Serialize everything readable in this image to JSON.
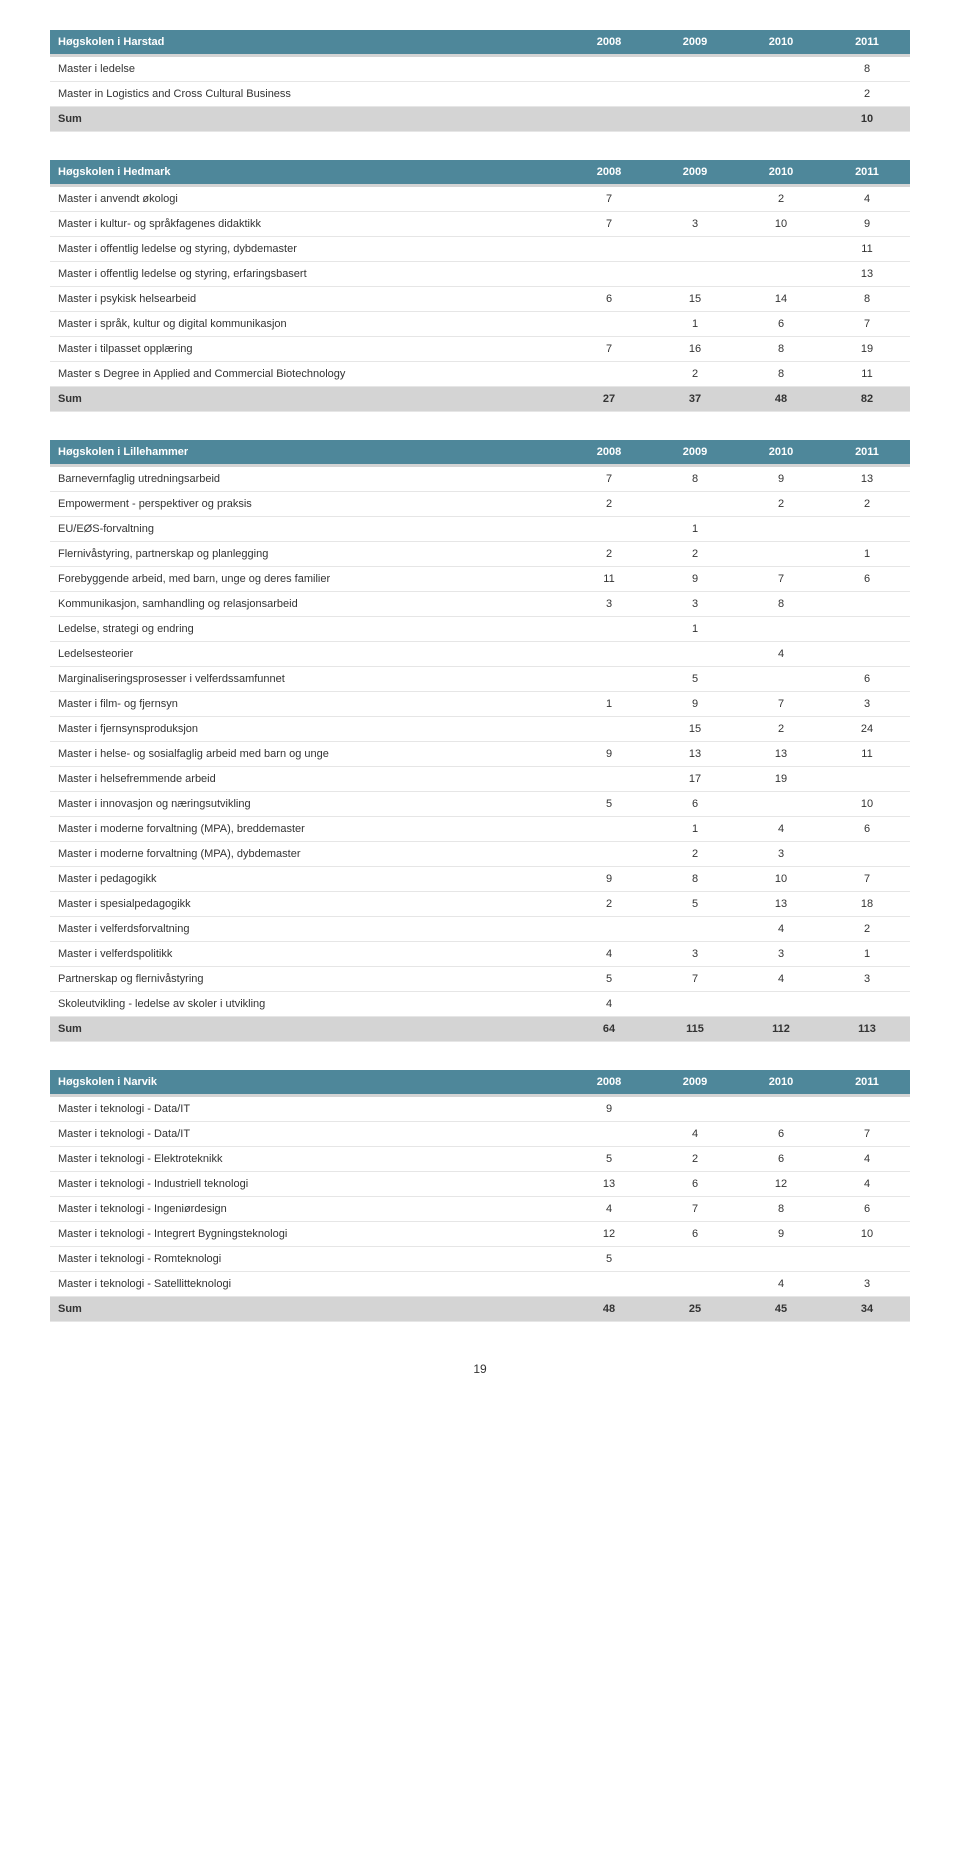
{
  "years": [
    "2008",
    "2009",
    "2010",
    "2011"
  ],
  "page_number": "19",
  "tables": [
    {
      "title": "Høgskolen i Harstad",
      "rows": [
        {
          "label": "Master i ledelse",
          "v": [
            "",
            "",
            "",
            "8"
          ]
        },
        {
          "label": "Master in Logistics and Cross Cultural Business",
          "v": [
            "",
            "",
            "",
            "2"
          ]
        }
      ],
      "sum": {
        "label": "Sum",
        "v": [
          "",
          "",
          "",
          "10"
        ]
      }
    },
    {
      "title": "Høgskolen i Hedmark",
      "rows": [
        {
          "label": "Master i anvendt økologi",
          "v": [
            "7",
            "",
            "2",
            "4"
          ]
        },
        {
          "label": "Master i kultur- og språkfagenes didaktikk",
          "v": [
            "7",
            "3",
            "10",
            "9"
          ]
        },
        {
          "label": "Master i offentlig ledelse og styring, dybdemaster",
          "v": [
            "",
            "",
            "",
            "11"
          ]
        },
        {
          "label": "Master i offentlig ledelse og styring, erfaringsbasert",
          "v": [
            "",
            "",
            "",
            "13"
          ]
        },
        {
          "label": "Master i psykisk helsearbeid",
          "v": [
            "6",
            "15",
            "14",
            "8"
          ]
        },
        {
          "label": "Master i språk, kultur og digital kommunikasjon",
          "v": [
            "",
            "1",
            "6",
            "7"
          ]
        },
        {
          "label": "Master i tilpasset opplæring",
          "v": [
            "7",
            "16",
            "8",
            "19"
          ]
        },
        {
          "label": "Master s Degree in Applied and Commercial Biotechnology",
          "v": [
            "",
            "2",
            "8",
            "11"
          ]
        }
      ],
      "sum": {
        "label": "Sum",
        "v": [
          "27",
          "37",
          "48",
          "82"
        ]
      }
    },
    {
      "title": "Høgskolen i Lillehammer",
      "rows": [
        {
          "label": "Barnevernfaglig utredningsarbeid",
          "v": [
            "7",
            "8",
            "9",
            "13"
          ]
        },
        {
          "label": "Empowerment - perspektiver og praksis",
          "v": [
            "2",
            "",
            "2",
            "2"
          ]
        },
        {
          "label": "EU/EØS-forvaltning",
          "v": [
            "",
            "1",
            "",
            ""
          ]
        },
        {
          "label": "Flernivåstyring, partnerskap og planlegging",
          "v": [
            "2",
            "2",
            "",
            "1"
          ]
        },
        {
          "label": "Forebyggende arbeid, med barn, unge og deres familier",
          "v": [
            "11",
            "9",
            "7",
            "6"
          ]
        },
        {
          "label": "Kommunikasjon, samhandling og relasjonsarbeid",
          "v": [
            "3",
            "3",
            "8",
            ""
          ]
        },
        {
          "label": "Ledelse, strategi og endring",
          "v": [
            "",
            "1",
            "",
            ""
          ]
        },
        {
          "label": "Ledelsesteorier",
          "v": [
            "",
            "",
            "4",
            ""
          ]
        },
        {
          "label": "Marginaliseringsprosesser i velferdssamfunnet",
          "v": [
            "",
            "5",
            "",
            "6"
          ]
        },
        {
          "label": "Master i film- og fjernsyn",
          "v": [
            "1",
            "9",
            "7",
            "3"
          ]
        },
        {
          "label": "Master i fjernsynsproduksjon",
          "v": [
            "",
            "15",
            "2",
            "24"
          ]
        },
        {
          "label": "Master i helse- og sosialfaglig arbeid med barn og unge",
          "v": [
            "9",
            "13",
            "13",
            "11"
          ]
        },
        {
          "label": "Master i helsefremmende arbeid",
          "v": [
            "",
            "17",
            "19",
            ""
          ]
        },
        {
          "label": "Master i innovasjon og næringsutvikling",
          "v": [
            "5",
            "6",
            "",
            "10"
          ]
        },
        {
          "label": "Master i moderne forvaltning (MPA), breddemaster",
          "v": [
            "",
            "1",
            "4",
            "6"
          ]
        },
        {
          "label": "Master i moderne forvaltning (MPA), dybdemaster",
          "v": [
            "",
            "2",
            "3",
            ""
          ]
        },
        {
          "label": "Master i pedagogikk",
          "v": [
            "9",
            "8",
            "10",
            "7"
          ]
        },
        {
          "label": "Master i spesialpedagogikk",
          "v": [
            "2",
            "5",
            "13",
            "18"
          ]
        },
        {
          "label": "Master i velferdsforvaltning",
          "v": [
            "",
            "",
            "4",
            "2"
          ]
        },
        {
          "label": "Master i velferdspolitikk",
          "v": [
            "4",
            "3",
            "3",
            "1"
          ]
        },
        {
          "label": "Partnerskap og flernivåstyring",
          "v": [
            "5",
            "7",
            "4",
            "3"
          ]
        },
        {
          "label": "Skoleutvikling - ledelse av skoler i utvikling",
          "v": [
            "4",
            "",
            "",
            ""
          ]
        }
      ],
      "sum": {
        "label": "Sum",
        "v": [
          "64",
          "115",
          "112",
          "113"
        ]
      }
    },
    {
      "title": "Høgskolen i Narvik",
      "rows": [
        {
          "label": "Master i teknologi - Data/IT",
          "v": [
            "9",
            "",
            "",
            ""
          ]
        },
        {
          "label": "Master i teknologi - Data/IT",
          "v": [
            "",
            "4",
            "6",
            "7"
          ]
        },
        {
          "label": "Master i teknologi - Elektroteknikk",
          "v": [
            "5",
            "2",
            "6",
            "4"
          ]
        },
        {
          "label": "Master i teknologi - Industriell teknologi",
          "v": [
            "13",
            "6",
            "12",
            "4"
          ]
        },
        {
          "label": "Master i teknologi - Ingeniørdesign",
          "v": [
            "4",
            "7",
            "8",
            "6"
          ]
        },
        {
          "label": "Master i teknologi - Integrert Bygningsteknologi",
          "v": [
            "12",
            "6",
            "9",
            "10"
          ]
        },
        {
          "label": "Master i teknologi - Romteknologi",
          "v": [
            "5",
            "",
            "",
            ""
          ]
        },
        {
          "label": "Master i teknologi - Satellitteknologi",
          "v": [
            "",
            "",
            "4",
            "3"
          ]
        }
      ],
      "sum": {
        "label": "Sum",
        "v": [
          "48",
          "25",
          "45",
          "34"
        ]
      }
    }
  ]
}
